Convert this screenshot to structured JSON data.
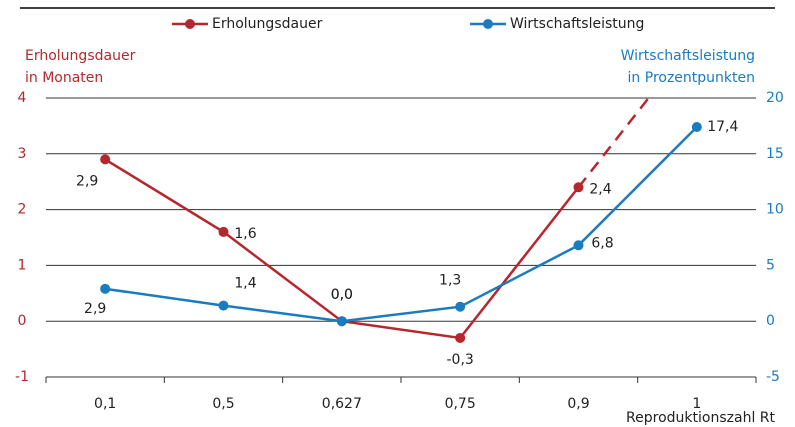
{
  "chart_data": {
    "type": "line",
    "categories": [
      "0,1",
      "0,5",
      "0,627",
      "0,75",
      "0,9",
      "1"
    ],
    "x_label": "Reproduktionszahl Rt",
    "y_label": [
      "Erholungsdauer",
      "in Monaten"
    ],
    "y2_label": [
      "Wirtschaftsleistung",
      "in Prozentpunkten"
    ],
    "ylim": [
      -1,
      4
    ],
    "yticks": [
      -1,
      0,
      1,
      2,
      3,
      4
    ],
    "y2lim": [
      -5,
      20
    ],
    "y2ticks": [
      -5,
      0,
      5,
      10,
      15,
      20
    ],
    "grid": true,
    "series": [
      {
        "name": "Erholungsdauer",
        "color": "#b5272d",
        "values": [
          2.9,
          1.6,
          0.0,
          -0.3,
          2.4,
          null
        ],
        "value_labels": [
          "2,9",
          "1,6",
          "0,0",
          "-0,3",
          "2,4",
          null
        ]
      },
      {
        "name": "Wirtschaftsleistung",
        "color": "#1a7bbf",
        "axis": "y2",
        "values": [
          2.9,
          1.4,
          0.0,
          1.3,
          6.8,
          17.4
        ],
        "value_labels": [
          "2,9",
          "1,4",
          "0,0",
          "1,3",
          "6,8",
          "17,4"
        ]
      }
    ]
  }
}
